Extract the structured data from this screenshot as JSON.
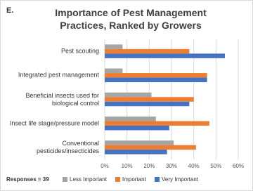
{
  "chart_data": {
    "type": "hbar",
    "panel_label": "E.",
    "title": "Importance of Pest Management Practices, Ranked by Growers",
    "annotation": "Responses = 39",
    "categories": [
      "Pest scouting",
      "Integrated pest management",
      "Beneficial insects used for biological control",
      "Insect life stage/pressure model",
      "Conventional pesticides/insecticides"
    ],
    "series": [
      {
        "name": "Less Important",
        "color": "#a5a5a5",
        "values": [
          8,
          8,
          21,
          23,
          31
        ]
      },
      {
        "name": "Important",
        "color": "#ed7d31",
        "values": [
          38,
          46,
          40,
          47,
          41
        ]
      },
      {
        "name": "Very Important",
        "color": "#4472c4",
        "values": [
          54,
          46,
          38,
          29,
          28
        ]
      }
    ],
    "xlim": [
      0,
      60
    ],
    "xticks": [
      {
        "value": 0,
        "label": "0%"
      },
      {
        "value": 10,
        "label": "10%"
      },
      {
        "value": 20,
        "label": "20%"
      },
      {
        "value": 30,
        "label": "30%"
      },
      {
        "value": 40,
        "label": "40%"
      },
      {
        "value": 50,
        "label": "50%"
      },
      {
        "value": 60,
        "label": "60%"
      }
    ],
    "grid": true
  }
}
